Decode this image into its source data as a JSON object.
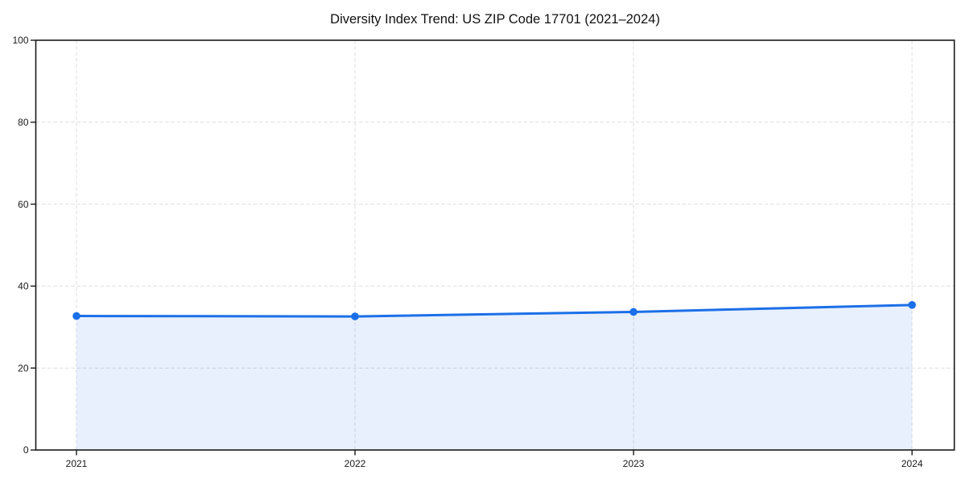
{
  "figure": {
    "background": "#ffffff"
  },
  "chart_data": {
    "type": "area",
    "title": "Diversity Index Trend: US ZIP Code 17701 (2021–2024)",
    "categories": [
      "2021",
      "2022",
      "2023",
      "2024"
    ],
    "values": [
      32.7,
      32.6,
      33.7,
      35.4
    ],
    "xlabel": "",
    "ylabel": "",
    "ylim": [
      0,
      100
    ],
    "yticks": [
      0,
      20,
      40,
      60,
      80,
      100
    ],
    "grid": true,
    "grid_style": "dashed",
    "legend": false,
    "marker": "circle",
    "colors": {
      "line": "#1b6fe8",
      "marker": "#1b6fe8",
      "fill": "#1b6fe8",
      "fill_opacity": 0.1,
      "grid": "#dedede",
      "axis": "#1a1a1a",
      "tick_label": "#1a1a1a",
      "title": "#111111",
      "background": "#ffffff"
    }
  }
}
